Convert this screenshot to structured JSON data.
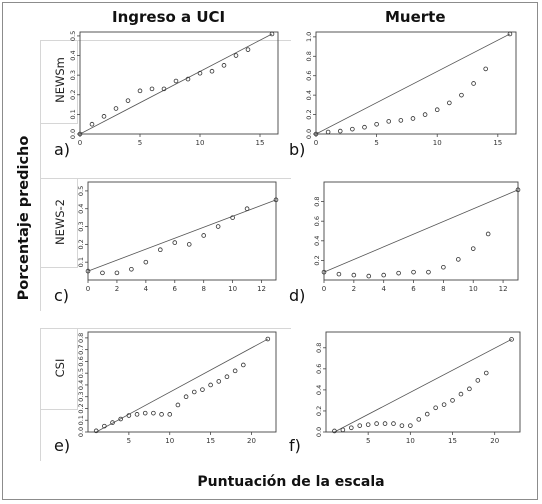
{
  "figure": {
    "col_headers": [
      "Ingreso a UCI",
      "Muerte"
    ],
    "ylabel": "Porcentaje predicho",
    "xlabel": "Puntuación de la escala",
    "row_labels": [
      "NEWSm",
      "NEWS-2",
      "CSI"
    ]
  },
  "chart_data": [
    {
      "type": "scatter",
      "panel": "a)",
      "row_label": "NEWSm",
      "column": "Ingreso a UCI",
      "xlim": [
        0,
        16.5
      ],
      "ylim": [
        0,
        0.52
      ],
      "xticks": [
        0,
        5,
        10,
        15
      ],
      "yticks": [
        0.0,
        0.1,
        0.2,
        0.3,
        0.4,
        0.5
      ],
      "x": [
        0,
        1,
        2,
        3,
        4,
        5,
        6,
        7,
        8,
        9,
        10,
        11,
        12,
        13,
        14,
        16
      ],
      "y": [
        0.0,
        0.05,
        0.09,
        0.13,
        0.17,
        0.22,
        0.23,
        0.23,
        0.27,
        0.28,
        0.31,
        0.32,
        0.35,
        0.4,
        0.43,
        0.51
      ],
      "reference_line": [
        [
          0,
          0.0
        ],
        [
          16,
          0.51
        ]
      ]
    },
    {
      "type": "scatter",
      "panel": "b)",
      "row_label": "NEWSm",
      "column": "Muerte",
      "xlim": [
        0,
        16.5
      ],
      "ylim": [
        0,
        1.05
      ],
      "xticks": [
        0,
        5,
        10,
        15
      ],
      "yticks": [
        0.0,
        0.2,
        0.4,
        0.6,
        0.8,
        1.0
      ],
      "x": [
        0,
        1,
        2,
        3,
        4,
        5,
        6,
        7,
        8,
        9,
        10,
        11,
        12,
        13,
        14,
        16
      ],
      "y": [
        0.0,
        0.02,
        0.03,
        0.05,
        0.07,
        0.1,
        0.13,
        0.14,
        0.16,
        0.2,
        0.25,
        0.32,
        0.4,
        0.52,
        0.67,
        1.03
      ],
      "reference_line": [
        [
          0,
          0.0
        ],
        [
          16,
          1.03
        ]
      ]
    },
    {
      "type": "scatter",
      "panel": "c)",
      "row_label": "NEWS-2",
      "column": "Ingreso a UCI",
      "xlim": [
        0,
        13
      ],
      "ylim": [
        0,
        0.55
      ],
      "xticks": [
        0,
        2,
        4,
        6,
        8,
        10,
        12
      ],
      "yticks": [
        0.1,
        0.2,
        0.3,
        0.4,
        0.5
      ],
      "x": [
        0,
        1,
        2,
        3,
        4,
        5,
        6,
        7,
        8,
        9,
        10,
        11,
        13
      ],
      "y": [
        0.05,
        0.04,
        0.04,
        0.06,
        0.1,
        0.17,
        0.21,
        0.2,
        0.25,
        0.3,
        0.35,
        0.4,
        0.45
      ],
      "reference_line": [
        [
          0,
          0.05
        ],
        [
          13,
          0.45
        ]
      ]
    },
    {
      "type": "scatter",
      "panel": "d)",
      "row_label": "NEWS-2",
      "column": "Muerte",
      "xlim": [
        0,
        13
      ],
      "ylim": [
        0,
        1.0
      ],
      "xticks": [
        0,
        2,
        4,
        6,
        8,
        10,
        12
      ],
      "yticks": [
        0.2,
        0.4,
        0.6,
        0.8
      ],
      "x": [
        0,
        1,
        2,
        3,
        4,
        5,
        6,
        7,
        8,
        9,
        10,
        11,
        13
      ],
      "y": [
        0.08,
        0.06,
        0.05,
        0.04,
        0.05,
        0.07,
        0.08,
        0.08,
        0.13,
        0.21,
        0.32,
        0.47,
        0.92
      ],
      "reference_line": [
        [
          0,
          0.08
        ],
        [
          13,
          0.92
        ]
      ]
    },
    {
      "type": "scatter",
      "panel": "e)",
      "row_label": "CSI",
      "column": "Ingreso a UCI",
      "xlim": [
        0,
        23
      ],
      "ylim": [
        0,
        0.85
      ],
      "xticks": [
        5,
        10,
        15,
        20
      ],
      "yticks": [
        0.0,
        0.1,
        0.2,
        0.3,
        0.4,
        0.5,
        0.6,
        0.7,
        0.8
      ],
      "x": [
        1,
        2,
        3,
        4,
        5,
        6,
        7,
        8,
        9,
        10,
        11,
        12,
        13,
        14,
        15,
        16,
        17,
        18,
        19,
        22
      ],
      "y": [
        0.01,
        0.05,
        0.08,
        0.11,
        0.14,
        0.15,
        0.16,
        0.16,
        0.15,
        0.15,
        0.23,
        0.3,
        0.34,
        0.36,
        0.4,
        0.43,
        0.47,
        0.52,
        0.57,
        0.79
      ],
      "reference_line": [
        [
          1,
          0.0
        ],
        [
          22,
          0.79
        ]
      ]
    },
    {
      "type": "scatter",
      "panel": "f)",
      "row_label": "CSI",
      "column": "Muerte",
      "xlim": [
        0,
        23
      ],
      "ylim": [
        0,
        0.95
      ],
      "xticks": [
        5,
        10,
        15,
        20
      ],
      "yticks": [
        0.0,
        0.2,
        0.4,
        0.6,
        0.8
      ],
      "x": [
        1,
        2,
        3,
        4,
        5,
        6,
        7,
        8,
        9,
        10,
        11,
        12,
        13,
        14,
        15,
        16,
        17,
        18,
        19,
        22
      ],
      "y": [
        0.01,
        0.02,
        0.04,
        0.06,
        0.07,
        0.08,
        0.08,
        0.08,
        0.06,
        0.06,
        0.12,
        0.17,
        0.23,
        0.26,
        0.3,
        0.36,
        0.41,
        0.49,
        0.56,
        0.88
      ],
      "reference_line": [
        [
          1,
          0.0
        ],
        [
          22,
          0.88
        ]
      ]
    }
  ]
}
